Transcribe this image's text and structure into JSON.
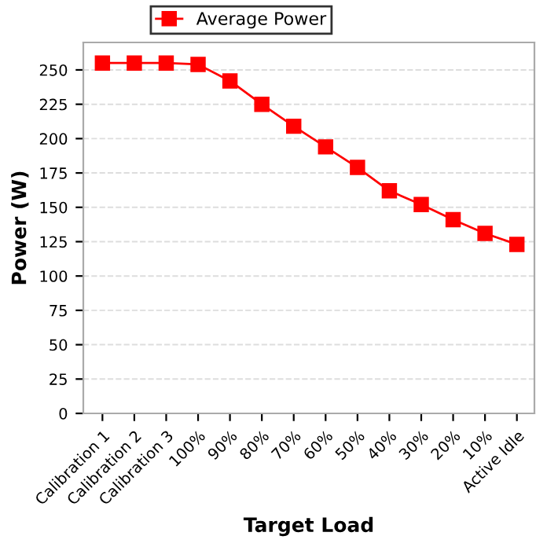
{
  "chart_data": {
    "type": "line",
    "xlabel": "Target Load",
    "ylabel": "Power (W)",
    "categories": [
      "Calibration 1",
      "Calibration 2",
      "Calibration 3",
      "100%",
      "90%",
      "80%",
      "70%",
      "60%",
      "50%",
      "40%",
      "30%",
      "20%",
      "10%",
      "Active Idle"
    ],
    "series": [
      {
        "name": "Average Power",
        "color": "#ff0000",
        "values": [
          255,
          255,
          255,
          254,
          242,
          225,
          209,
          194,
          179,
          162,
          152,
          141,
          131,
          123
        ]
      }
    ],
    "ylim": [
      0,
      270
    ],
    "yticks": [
      0,
      25,
      50,
      75,
      100,
      125,
      150,
      175,
      200,
      225,
      250
    ],
    "grid": "y",
    "legend": "top",
    "marker": "square",
    "line_style": "solid"
  }
}
